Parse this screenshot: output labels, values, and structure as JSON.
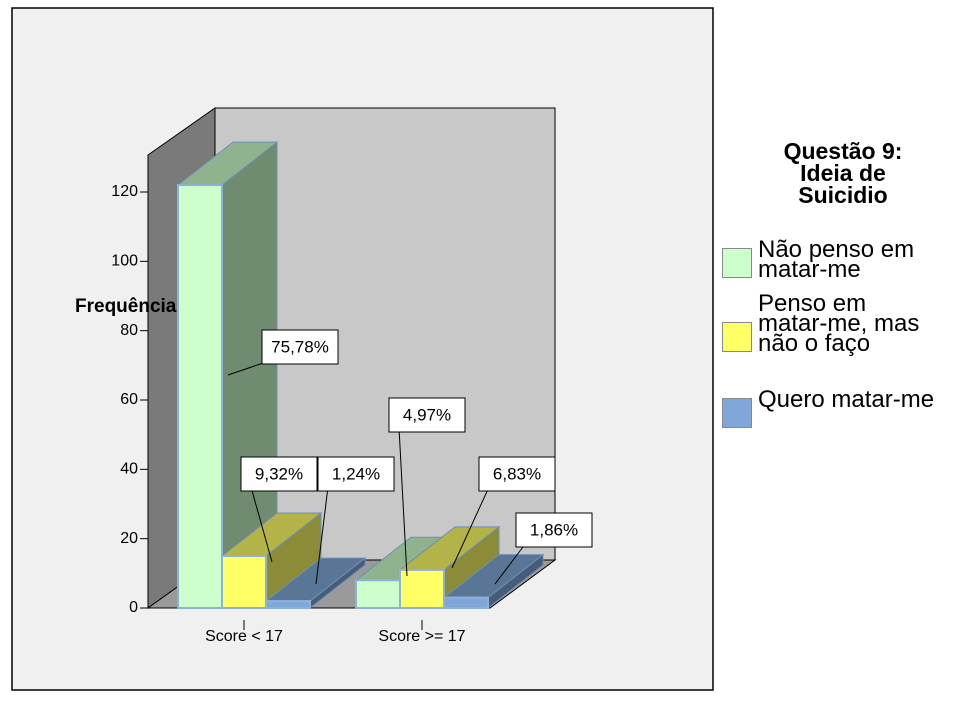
{
  "chart_data": {
    "type": "bar3d",
    "y_label": "Frequência",
    "legend_title": "Questão 9: Ideia de Suicidio",
    "categories": [
      "Score < 17",
      "Score >= 17"
    ],
    "series": [
      {
        "name": "Não penso em matar-me",
        "color": "#ccffcc",
        "values": [
          122,
          8
        ],
        "value_labels": [
          "75,78%",
          "4,97%"
        ]
      },
      {
        "name": "Penso em matar-me, mas não o faço",
        "color": "#ffff66",
        "values": [
          15,
          11
        ],
        "value_labels": [
          "9,32%",
          "6,83%"
        ]
      },
      {
        "name": "Quero matar-me",
        "color": "#7fa8d8",
        "values": [
          2,
          3
        ],
        "value_labels": [
          "1,24%",
          "1,86%"
        ]
      }
    ],
    "ylim": [
      0,
      120
    ],
    "yticks": [
      0,
      20,
      40,
      60,
      80,
      100,
      120
    ]
  }
}
